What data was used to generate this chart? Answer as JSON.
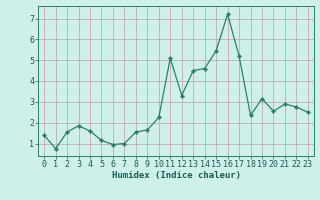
{
  "x": [
    0,
    1,
    2,
    3,
    4,
    5,
    6,
    7,
    8,
    9,
    10,
    11,
    12,
    13,
    14,
    15,
    16,
    17,
    18,
    19,
    20,
    21,
    22,
    23
  ],
  "y": [
    1.4,
    0.75,
    1.55,
    1.85,
    1.6,
    1.15,
    0.95,
    1.0,
    1.55,
    1.65,
    2.25,
    5.1,
    3.3,
    4.5,
    4.6,
    5.45,
    7.2,
    5.2,
    2.35,
    3.15,
    2.55,
    2.9,
    2.75,
    2.5
  ],
  "xlabel": "Humidex (Indice chaleur)",
  "ylim": [
    0.4,
    7.6
  ],
  "xlim": [
    -0.5,
    23.5
  ],
  "yticks": [
    1,
    2,
    3,
    4,
    5,
    6,
    7
  ],
  "xticks": [
    0,
    1,
    2,
    3,
    4,
    5,
    6,
    7,
    8,
    9,
    10,
    11,
    12,
    13,
    14,
    15,
    16,
    17,
    18,
    19,
    20,
    21,
    22,
    23
  ],
  "line_color": "#2e7d6d",
  "marker": "D",
  "marker_size": 2.2,
  "bg_color": "#cff0ea",
  "grid_color": "#c0a0a0",
  "axis_color": "#2e7d6d",
  "label_color": "#1a5c52",
  "tick_color": "#1a5c52",
  "xlabel_fontsize": 6.5,
  "tick_fontsize": 6
}
